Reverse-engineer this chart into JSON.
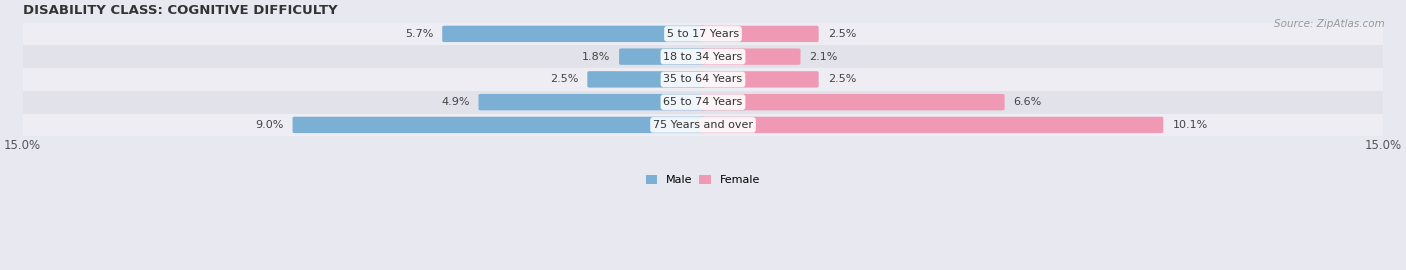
{
  "title": "DISABILITY CLASS: COGNITIVE DIFFICULTY",
  "source": "Source: ZipAtlas.com",
  "categories": [
    "5 to 17 Years",
    "18 to 34 Years",
    "35 to 64 Years",
    "65 to 74 Years",
    "75 Years and over"
  ],
  "male_values": [
    5.7,
    1.8,
    2.5,
    4.9,
    9.0
  ],
  "female_values": [
    2.5,
    2.1,
    2.5,
    6.6,
    10.1
  ],
  "male_color": "#7bafd4",
  "female_color": "#f099b5",
  "axis_max": 15.0,
  "label_fontsize": 8.0,
  "title_fontsize": 9.5,
  "tick_fontsize": 8.5,
  "bar_height": 0.62,
  "row_bg_colors": [
    "#ededf3",
    "#e2e2ea"
  ]
}
